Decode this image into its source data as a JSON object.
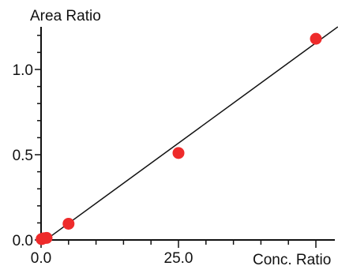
{
  "chart_data": {
    "type": "scatter",
    "title": "",
    "ylabel": "Area Ratio",
    "xlabel": "Conc. Ratio",
    "xlim": [
      0,
      54
    ],
    "ylim": [
      0,
      1.25
    ],
    "x_ticks": [
      {
        "value": 0,
        "label": "0.0"
      },
      {
        "value": 25,
        "label": "25.0"
      }
    ],
    "y_ticks": [
      {
        "value": 0,
        "label": "0.0"
      },
      {
        "value": 0.5,
        "label": "0.5"
      },
      {
        "value": 1.0,
        "label": "1.0"
      }
    ],
    "points": [
      {
        "x": 0.1,
        "y": 0.005
      },
      {
        "x": 0.5,
        "y": 0.01
      },
      {
        "x": 1.0,
        "y": 0.012
      },
      {
        "x": 5.0,
        "y": 0.095
      },
      {
        "x": 25.0,
        "y": 0.51
      },
      {
        "x": 50.0,
        "y": 1.18
      }
    ],
    "fit_line": {
      "x": [
        0.0,
        54.0
      ],
      "y": [
        -0.02,
        1.25
      ]
    },
    "colors": {
      "points": "#ee2b2b",
      "line": "#111111",
      "axes": "#111111"
    },
    "grid": false,
    "legend": "none"
  }
}
